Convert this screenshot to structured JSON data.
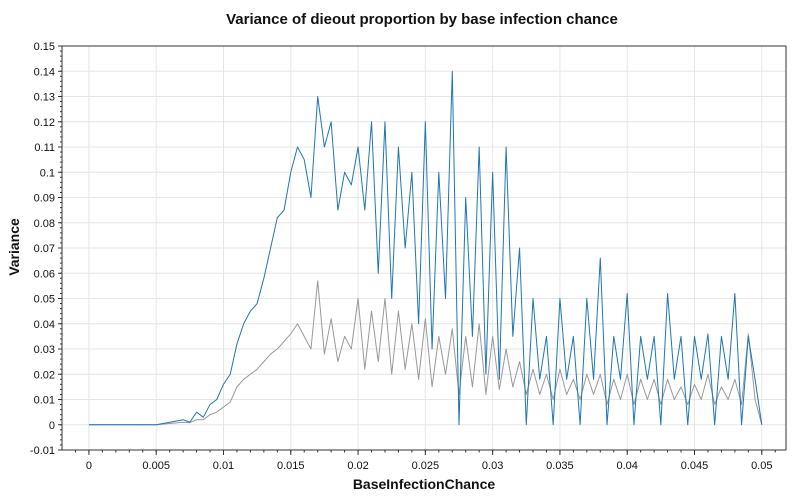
{
  "chart_data": {
    "type": "line",
    "title": "Variance of dieout proportion by base infection chance",
    "xlabel": "BaseInfectionChance",
    "ylabel": "Variance",
    "xlim": [
      -0.002,
      0.0518
    ],
    "ylim": [
      -0.01,
      0.15
    ],
    "x_ticks": [
      "0",
      "0.005",
      "0.01",
      "0.015",
      "0.02",
      "0.025",
      "0.03",
      "0.035",
      "0.04",
      "0.045",
      "0.05"
    ],
    "y_ticks": [
      "-0.01",
      "0",
      "0.01",
      "0.02",
      "0.03",
      "0.04",
      "0.05",
      "0.06",
      "0.07",
      "0.08",
      "0.09",
      "0.1",
      "0.11",
      "0.12",
      "0.13",
      "0.14",
      "0.15"
    ],
    "grid": true,
    "series": [
      {
        "color": "#1f77b4",
        "x": [
          0.0,
          0.002,
          0.004,
          0.005,
          0.006,
          0.007,
          0.0075,
          0.008,
          0.0085,
          0.009,
          0.0095,
          0.01,
          0.0105,
          0.011,
          0.0115,
          0.012,
          0.0125,
          0.013,
          0.0135,
          0.014,
          0.0145,
          0.015,
          0.0155,
          0.016,
          0.0165,
          0.017,
          0.0175,
          0.018,
          0.0185,
          0.019,
          0.0195,
          0.02,
          0.0205,
          0.021,
          0.0215,
          0.022,
          0.0225,
          0.023,
          0.0235,
          0.024,
          0.0245,
          0.025,
          0.0255,
          0.026,
          0.0265,
          0.027,
          0.0275,
          0.028,
          0.0285,
          0.029,
          0.0295,
          0.03,
          0.0305,
          0.031,
          0.0315,
          0.032,
          0.0325,
          0.033,
          0.0335,
          0.034,
          0.0345,
          0.035,
          0.0355,
          0.036,
          0.0365,
          0.037,
          0.0375,
          0.038,
          0.0385,
          0.039,
          0.0395,
          0.04,
          0.0405,
          0.041,
          0.0415,
          0.042,
          0.0425,
          0.043,
          0.0435,
          0.044,
          0.0445,
          0.045,
          0.0455,
          0.046,
          0.0465,
          0.047,
          0.0475,
          0.048,
          0.0485,
          0.049,
          0.0495,
          0.05
        ],
        "y": [
          0.0,
          0.0,
          0.0,
          0.0,
          0.001,
          0.002,
          0.001,
          0.005,
          0.003,
          0.008,
          0.01,
          0.016,
          0.02,
          0.032,
          0.04,
          0.045,
          0.048,
          0.058,
          0.07,
          0.082,
          0.085,
          0.1,
          0.11,
          0.105,
          0.09,
          0.13,
          0.11,
          0.12,
          0.085,
          0.1,
          0.095,
          0.11,
          0.085,
          0.12,
          0.06,
          0.12,
          0.05,
          0.11,
          0.07,
          0.1,
          0.04,
          0.12,
          0.03,
          0.1,
          0.05,
          0.14,
          0.0,
          0.09,
          0.035,
          0.11,
          0.02,
          0.1,
          0.018,
          0.11,
          0.035,
          0.07,
          0.0,
          0.05,
          0.018,
          0.035,
          0.0,
          0.05,
          0.018,
          0.035,
          0.0,
          0.05,
          0.018,
          0.066,
          0.0,
          0.035,
          0.018,
          0.052,
          0.0,
          0.035,
          0.018,
          0.035,
          0.0,
          0.052,
          0.018,
          0.035,
          0.0,
          0.035,
          0.018,
          0.036,
          0.0,
          0.035,
          0.018,
          0.052,
          0.0,
          0.035,
          0.018,
          0.0
        ]
      },
      {
        "color": "#999999",
        "x": [
          0.0,
          0.002,
          0.004,
          0.005,
          0.006,
          0.007,
          0.0075,
          0.008,
          0.0085,
          0.009,
          0.0095,
          0.01,
          0.0105,
          0.011,
          0.0115,
          0.012,
          0.0125,
          0.013,
          0.0135,
          0.014,
          0.0145,
          0.015,
          0.0155,
          0.016,
          0.0165,
          0.017,
          0.0175,
          0.018,
          0.0185,
          0.019,
          0.0195,
          0.02,
          0.0205,
          0.021,
          0.0215,
          0.022,
          0.0225,
          0.023,
          0.0235,
          0.024,
          0.0245,
          0.025,
          0.0255,
          0.026,
          0.0265,
          0.027,
          0.0275,
          0.028,
          0.0285,
          0.029,
          0.0295,
          0.03,
          0.0305,
          0.031,
          0.0315,
          0.032,
          0.0325,
          0.033,
          0.0335,
          0.034,
          0.0345,
          0.035,
          0.0355,
          0.036,
          0.0365,
          0.037,
          0.0375,
          0.038,
          0.0385,
          0.039,
          0.0395,
          0.04,
          0.0405,
          0.041,
          0.0415,
          0.042,
          0.0425,
          0.043,
          0.0435,
          0.044,
          0.0445,
          0.045,
          0.0455,
          0.046,
          0.0465,
          0.047,
          0.0475,
          0.048,
          0.0485,
          0.049,
          0.0495,
          0.05
        ],
        "y": [
          0.0,
          0.0,
          0.0,
          0.0,
          0.0005,
          0.001,
          0.0008,
          0.002,
          0.002,
          0.004,
          0.005,
          0.007,
          0.009,
          0.015,
          0.018,
          0.02,
          0.022,
          0.025,
          0.028,
          0.03,
          0.033,
          0.036,
          0.04,
          0.035,
          0.03,
          0.057,
          0.028,
          0.042,
          0.025,
          0.035,
          0.03,
          0.05,
          0.022,
          0.045,
          0.025,
          0.05,
          0.02,
          0.045,
          0.022,
          0.04,
          0.018,
          0.042,
          0.015,
          0.035,
          0.02,
          0.038,
          0.012,
          0.035,
          0.015,
          0.04,
          0.012,
          0.035,
          0.014,
          0.03,
          0.015,
          0.025,
          0.012,
          0.022,
          0.012,
          0.02,
          0.01,
          0.022,
          0.012,
          0.018,
          0.01,
          0.02,
          0.012,
          0.02,
          0.008,
          0.018,
          0.01,
          0.02,
          0.008,
          0.018,
          0.01,
          0.018,
          0.008,
          0.018,
          0.01,
          0.015,
          0.008,
          0.016,
          0.01,
          0.02,
          0.008,
          0.015,
          0.01,
          0.018,
          0.008,
          0.036,
          0.01,
          0.0
        ]
      }
    ]
  }
}
